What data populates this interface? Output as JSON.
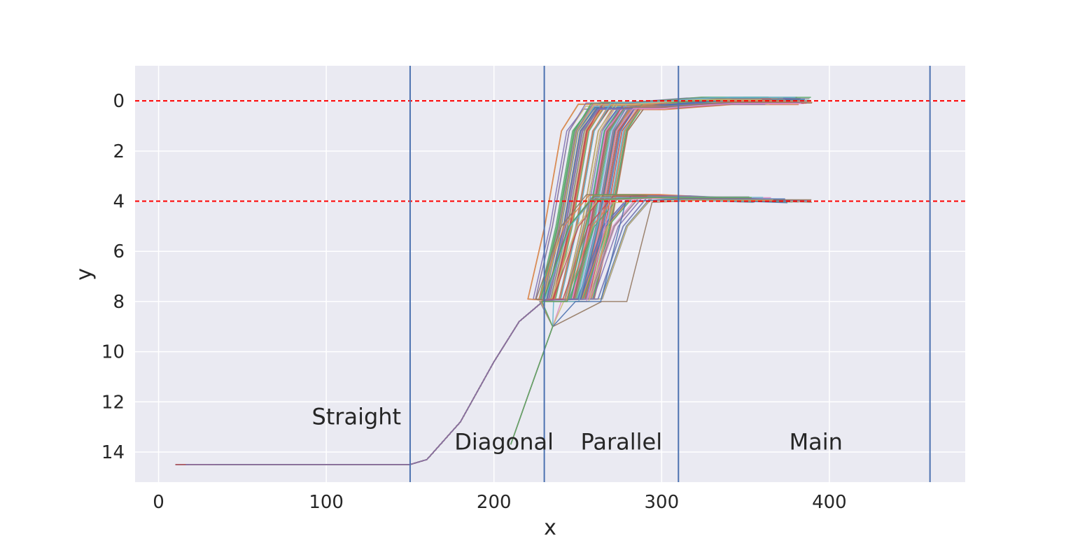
{
  "chart_data": {
    "type": "line",
    "title": "",
    "xlabel": "x",
    "ylabel": "y",
    "xlim": [
      -14,
      481
    ],
    "ylim": [
      15.2,
      -1.4
    ],
    "y_inverted": true,
    "xticks": [
      0,
      100,
      200,
      300,
      400
    ],
    "yticks": [
      0,
      2,
      4,
      6,
      8,
      10,
      12,
      14
    ],
    "grid": true,
    "legend": "none",
    "background_color": "#eaeaf2",
    "grid_color": "#ffffff",
    "series_palette": [
      "#4c72b0",
      "#dd8452",
      "#55a868",
      "#c44e52",
      "#8172b3",
      "#937860",
      "#da8bc3",
      "#8c8c8c",
      "#ccb974",
      "#64b5cd"
    ],
    "reference_lines": {
      "horizontal": [
        {
          "y": 0,
          "color": "#ff0000",
          "style": "dashed"
        },
        {
          "y": 4,
          "color": "#ff0000",
          "style": "dashed"
        }
      ],
      "vertical": [
        {
          "x": 150,
          "color": "#4c72b0"
        },
        {
          "x": 230,
          "color": "#4c72b0"
        },
        {
          "x": 310,
          "color": "#4c72b0"
        },
        {
          "x": 460,
          "color": "#4c72b0"
        }
      ]
    },
    "annotations": [
      {
        "text": "Straight",
        "x": 118,
        "y": 12.9
      },
      {
        "text": "Diagonal",
        "x": 206,
        "y": 13.9
      },
      {
        "text": "Parallel",
        "x": 276,
        "y": 13.9
      },
      {
        "text": "Main",
        "x": 392,
        "y": 13.9
      }
    ],
    "series_groups": [
      {
        "description": "trajectories entering at the straight segment, merging through the diagonal into lane 8, then to lane 0",
        "count": 90,
        "points": [
          [
            10,
            14.5
          ],
          [
            150,
            14.5
          ],
          [
            160,
            14.3
          ],
          [
            180,
            12.8
          ],
          [
            200,
            10.4
          ],
          [
            215,
            8.8
          ],
          [
            230,
            7.95
          ],
          [
            240,
            7.9
          ],
          [
            250,
            5.0
          ],
          [
            260,
            1.2
          ],
          [
            270,
            0.2
          ],
          [
            290,
            0.2
          ],
          [
            330,
            0.0
          ],
          [
            370,
            0.0
          ]
        ]
      },
      {
        "description": "trajectories merging into lane 4",
        "count": 25,
        "points": [
          [
            10,
            14.5
          ],
          [
            150,
            14.5
          ],
          [
            160,
            14.3
          ],
          [
            180,
            12.8
          ],
          [
            200,
            10.4
          ],
          [
            215,
            8.8
          ],
          [
            230,
            7.95
          ],
          [
            245,
            7.9
          ],
          [
            260,
            5.0
          ],
          [
            275,
            3.8
          ],
          [
            300,
            3.8
          ],
          [
            330,
            3.9
          ],
          [
            370,
            4.0
          ]
        ]
      },
      {
        "description": "late-entering trajectories starting near x=210",
        "count": 8,
        "points": [
          [
            210,
            13.7
          ],
          [
            220,
            11.8
          ],
          [
            235,
            9.0
          ],
          [
            245,
            8.0
          ],
          [
            260,
            8.0
          ],
          [
            275,
            4.0
          ],
          [
            310,
            3.9
          ],
          [
            370,
            3.9
          ]
        ]
      }
    ]
  }
}
